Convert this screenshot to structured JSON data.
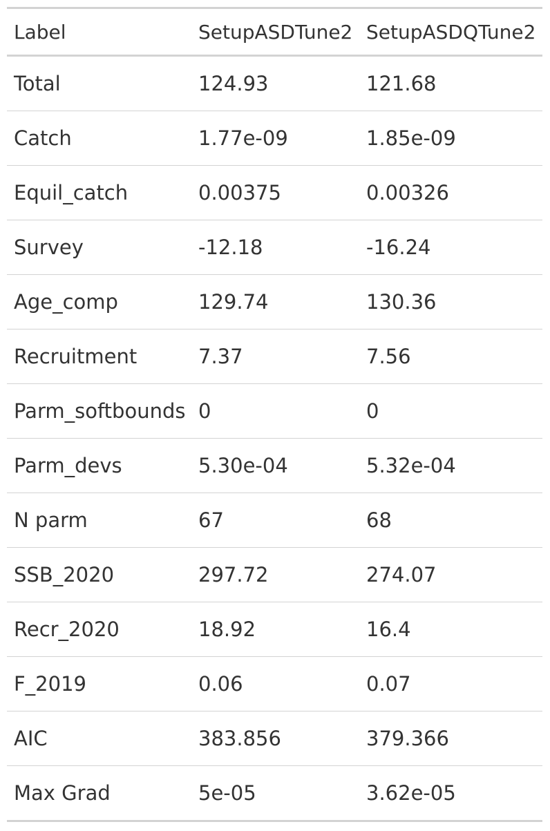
{
  "table": {
    "headers": [
      "Label",
      "SetupASDTune2",
      "SetupASDQTune2"
    ],
    "rows": [
      [
        "Total",
        "124.93",
        "121.68"
      ],
      [
        "Catch",
        "1.77e-09",
        "1.85e-09"
      ],
      [
        "Equil_catch",
        "0.00375",
        "0.00326"
      ],
      [
        "Survey",
        "-12.18",
        "-16.24"
      ],
      [
        "Age_comp",
        "129.74",
        "130.36"
      ],
      [
        "Recruitment",
        "7.37",
        "7.56"
      ],
      [
        "Parm_softbounds",
        "0",
        "0"
      ],
      [
        "Parm_devs",
        "5.30e-04",
        "5.32e-04"
      ],
      [
        "N parm",
        "67",
        "68"
      ],
      [
        "SSB_2020",
        "297.72",
        "274.07"
      ],
      [
        "Recr_2020",
        "18.92",
        "16.4"
      ],
      [
        "F_2019",
        "0.06",
        "0.07"
      ],
      [
        "AIC",
        "383.856",
        "379.366"
      ],
      [
        "Max Grad",
        "5e-05",
        "3.62e-05"
      ]
    ]
  },
  "colors": {
    "text": "#333333",
    "rule": "#d3d3d3",
    "background": "#ffffff"
  }
}
